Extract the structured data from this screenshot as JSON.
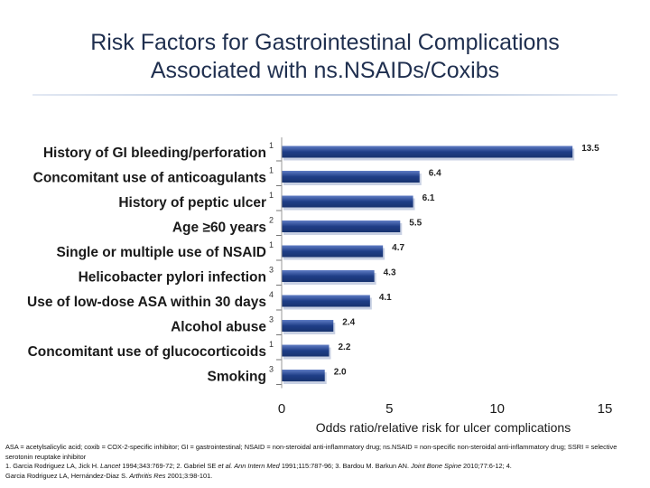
{
  "title": {
    "line1": "Risk Factors for Gastrointestinal Complications",
    "line2": "Associated with ns.NSAIDs/Coxibs"
  },
  "chart_data": {
    "type": "bar",
    "orientation": "horizontal",
    "categories": [
      "History of GI bleeding/perforation",
      "Concomitant use of anticoagulants",
      "History of peptic ulcer",
      "Age ≥60 years",
      "Single or multiple use of NSAID",
      "Helicobacter pylori infection",
      "Use of low-dose ASA within 30 days",
      "Alcohol abuse",
      "Concomitant use of glucocorticoids",
      "Smoking"
    ],
    "values": [
      13.5,
      6.4,
      6.1,
      5.5,
      4.7,
      4.3,
      4.1,
      2.4,
      2.2,
      2.0
    ],
    "value_labels": [
      "13.5",
      "6.4",
      "6.1",
      "5.5",
      "4.7",
      "4.3",
      "4.1",
      "2.4",
      "2.2",
      "2.0"
    ],
    "reference_superscripts": [
      "1",
      "1",
      "1",
      "2",
      "1",
      "3",
      "4",
      "3",
      "1",
      "3"
    ],
    "xlabel": "Odds ratio/relative risk for ulcer complications",
    "xlim": [
      0,
      15
    ],
    "xticks": [
      "0",
      "5",
      "10",
      "15"
    ],
    "xtick_values": [
      0,
      5,
      10,
      15
    ],
    "colors": {
      "bar": "#1f3e87",
      "bar_highlight": "#5f7cc4",
      "bar_shadow": "#c9d1e3",
      "label": "#1a1a1a"
    }
  },
  "footnote": {
    "abbrev": "ASA = acetylsalicylic acid; coxib = COX-2-specific inhibitor; GI = gastrointestinal; NSAID = non-steroidal anti-inflammatory drug; ns.NSAID = non-specific non-steroidal anti-inflammatory drug; SSRI = selective serotonin reuptake inhibitor",
    "ref1_a": "1. Garcia Rodriguez LA, Jick H. ",
    "ref1_j": "Lancet",
    "ref1_b": " 1994;343:769-72; 2. Gabriel SE ",
    "ref2_j": "et al. Ann Intern Med",
    "ref2_b": " 1991;115:787-96; 3. Bardou M. Barkun AN. ",
    "ref3_j": "Joint Bone Spine",
    "ref3_b": " 2010;77:6-12; 4.",
    "ref4_a": "Garcia Rodriguez LA, Hernández-Diaz S. ",
    "ref4_j": "Arthritis Res",
    "ref4_b": " 2001;3:98-101."
  }
}
